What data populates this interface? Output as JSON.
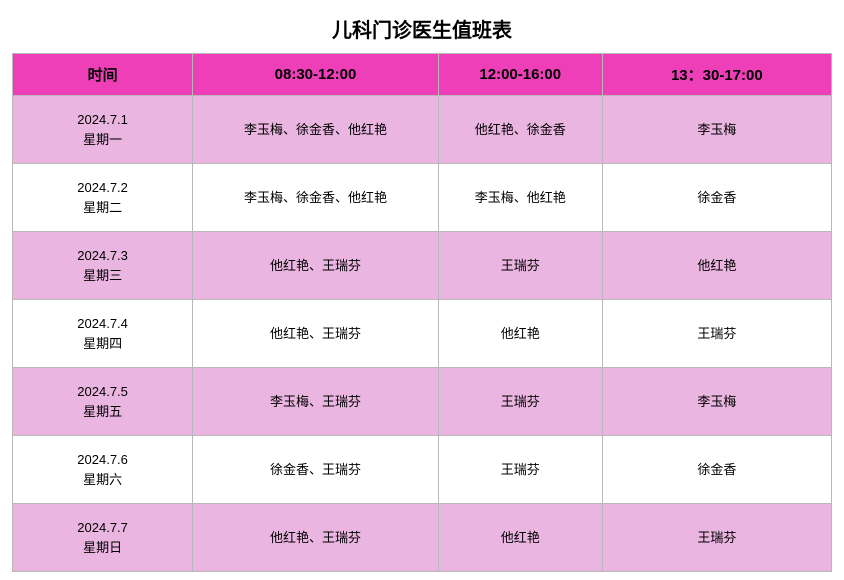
{
  "title": "儿科门诊医生值班表",
  "columns": [
    "时间",
    "08:30-12:00",
    "12:00-16:00",
    "13：30-17:00"
  ],
  "header_bg": "#ee3fb8",
  "header_text_color": "#000000",
  "alt_row_bg": "#eab5e0",
  "row_bg": "#ffffff",
  "border_color": "#b8b8b8",
  "rows": [
    {
      "date": "2024.7.1",
      "day": "星期一",
      "s1": "李玉梅、徐金香、他红艳",
      "s2": "他红艳、徐金香",
      "s3": "李玉梅"
    },
    {
      "date": "2024.7.2",
      "day": "星期二",
      "s1": "李玉梅、徐金香、他红艳",
      "s2": "李玉梅、他红艳",
      "s3": "徐金香"
    },
    {
      "date": "2024.7.3",
      "day": "星期三",
      "s1": "他红艳、王瑞芬",
      "s2": "王瑞芬",
      "s3": "他红艳"
    },
    {
      "date": "2024.7.4",
      "day": "星期四",
      "s1": "他红艳、王瑞芬",
      "s2": "他红艳",
      "s3": "王瑞芬"
    },
    {
      "date": "2024.7.5",
      "day": "星期五",
      "s1": "李玉梅、王瑞芬",
      "s2": "王瑞芬",
      "s3": "李玉梅"
    },
    {
      "date": "2024.7.6",
      "day": "星期六",
      "s1": "徐金香、王瑞芬",
      "s2": "王瑞芬",
      "s3": "徐金香"
    },
    {
      "date": "2024.7.7",
      "day": "星期日",
      "s1": "他红艳、王瑞芬",
      "s2": "他红艳",
      "s3": "王瑞芬"
    }
  ]
}
